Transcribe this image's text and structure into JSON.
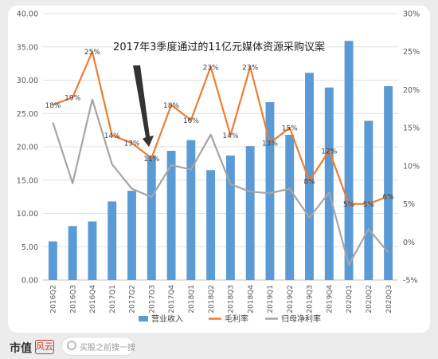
{
  "chart_data": {
    "type": "bar+line",
    "title": "2017年3季度通过的11亿元媒体资源采购议案",
    "categories": [
      "2016Q2",
      "2016Q3",
      "2016Q4",
      "2017Q1",
      "2017Q2",
      "2017Q3",
      "2017Q4",
      "2018Q1",
      "2018Q2",
      "2018Q3",
      "2018Q4",
      "2019Q1",
      "2019Q2",
      "2019Q3",
      "2019Q4",
      "2020Q1",
      "2020Q2",
      "2020Q3"
    ],
    "left_axis": {
      "min": 0,
      "max": 40,
      "step": 5,
      "tick_labels": [
        "0.00",
        "5.00",
        "10.00",
        "15.00",
        "20.00",
        "25.00",
        "30.00",
        "35.00",
        "40.00"
      ]
    },
    "right_axis": {
      "min": -5,
      "max": 30,
      "step": 5,
      "tick_labels": [
        "-5%",
        "0%",
        "5%",
        "10%",
        "15%",
        "20%",
        "25%",
        "30%"
      ]
    },
    "series": [
      {
        "name": "营业收入",
        "kind": "bar",
        "axis": "left",
        "color": "#5b9bd5",
        "values": [
          5.8,
          8.1,
          8.8,
          11.8,
          13.4,
          18.7,
          19.4,
          21.0,
          16.5,
          18.7,
          20.1,
          26.7,
          21.8,
          31.1,
          28.9,
          35.9,
          23.9,
          29.1
        ]
      },
      {
        "name": "毛利率",
        "kind": "line",
        "axis": "right",
        "color": "#ed7d31",
        "values": [
          18,
          19,
          25,
          14,
          13,
          11,
          18,
          16,
          23,
          14,
          23,
          13,
          15,
          8,
          12,
          5,
          5,
          6
        ],
        "labels": [
          "18%",
          "19%",
          "25%",
          "14%",
          "13%",
          "11%",
          "18%",
          "16%",
          "23%",
          "14%",
          "23%",
          "13%",
          "15%",
          "8%",
          "12%",
          "5%",
          "5%",
          "6%"
        ]
      },
      {
        "name": "归母净利率",
        "kind": "line",
        "axis": "right",
        "color": "#a5a5a5",
        "values": [
          15.7,
          7.7,
          18.7,
          10.2,
          7.0,
          5.9,
          10.1,
          9.5,
          14.1,
          7.6,
          6.6,
          6.4,
          7.0,
          3.2,
          6.5,
          -3.0,
          1.7,
          -1.4
        ]
      }
    ],
    "legend_position": "bottom",
    "grid": "horizontal"
  },
  "footer": {
    "brand": "市值",
    "logo_text": "风云",
    "search_placeholder": "买股之前搜一搜"
  }
}
